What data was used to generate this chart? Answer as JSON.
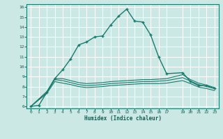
{
  "xlabel": "Humidex (Indice chaleur)",
  "bg_color": "#cce8e4",
  "line_color": "#1a7a6e",
  "grid_color": "#b8ddd8",
  "xlim": [
    -0.5,
    23.5
  ],
  "ylim": [
    5.8,
    16.3
  ],
  "xticks": [
    0,
    1,
    2,
    3,
    4,
    5,
    6,
    7,
    8,
    9,
    10,
    11,
    12,
    13,
    14,
    15,
    16,
    17,
    19,
    20,
    21,
    22,
    23
  ],
  "yticks": [
    6,
    7,
    8,
    9,
    10,
    11,
    12,
    13,
    14,
    15,
    16
  ],
  "line1_x": [
    0,
    1,
    2,
    3,
    4,
    5,
    6,
    7,
    8,
    9,
    10,
    11,
    12,
    13,
    14,
    15,
    16,
    17,
    19,
    20,
    21,
    22,
    23
  ],
  "line1_y": [
    6.0,
    6.1,
    7.4,
    8.8,
    9.7,
    10.8,
    12.2,
    12.5,
    13.0,
    13.1,
    14.2,
    15.1,
    15.8,
    14.6,
    14.5,
    13.2,
    11.0,
    9.3,
    9.4,
    8.5,
    8.1,
    8.1,
    7.8
  ],
  "line2_x": [
    0,
    2,
    3,
    4,
    5,
    6,
    7,
    8,
    9,
    10,
    11,
    12,
    13,
    14,
    15,
    16,
    17,
    19,
    20,
    21,
    22,
    23
  ],
  "line2_y": [
    6.0,
    7.5,
    8.8,
    8.8,
    8.6,
    8.4,
    8.3,
    8.35,
    8.4,
    8.5,
    8.55,
    8.6,
    8.65,
    8.7,
    8.7,
    8.75,
    8.8,
    9.2,
    8.7,
    8.35,
    8.15,
    7.9
  ],
  "line3_x": [
    0,
    2,
    3,
    4,
    5,
    6,
    7,
    8,
    9,
    10,
    11,
    12,
    13,
    14,
    15,
    16,
    17,
    19,
    20,
    21,
    22,
    23
  ],
  "line3_y": [
    6.0,
    7.4,
    8.7,
    8.6,
    8.4,
    8.2,
    8.1,
    8.15,
    8.2,
    8.3,
    8.35,
    8.4,
    8.45,
    8.5,
    8.5,
    8.55,
    8.6,
    8.9,
    8.55,
    8.2,
    8.0,
    7.8
  ],
  "line4_x": [
    0,
    2,
    3,
    4,
    5,
    6,
    7,
    8,
    9,
    10,
    11,
    12,
    13,
    14,
    15,
    16,
    17,
    19,
    20,
    21,
    22,
    23
  ],
  "line4_y": [
    6.0,
    7.3,
    8.5,
    8.35,
    8.2,
    8.0,
    7.9,
    7.95,
    8.0,
    8.1,
    8.15,
    8.2,
    8.25,
    8.3,
    8.3,
    8.3,
    8.35,
    8.6,
    8.3,
    7.95,
    7.8,
    7.6
  ]
}
